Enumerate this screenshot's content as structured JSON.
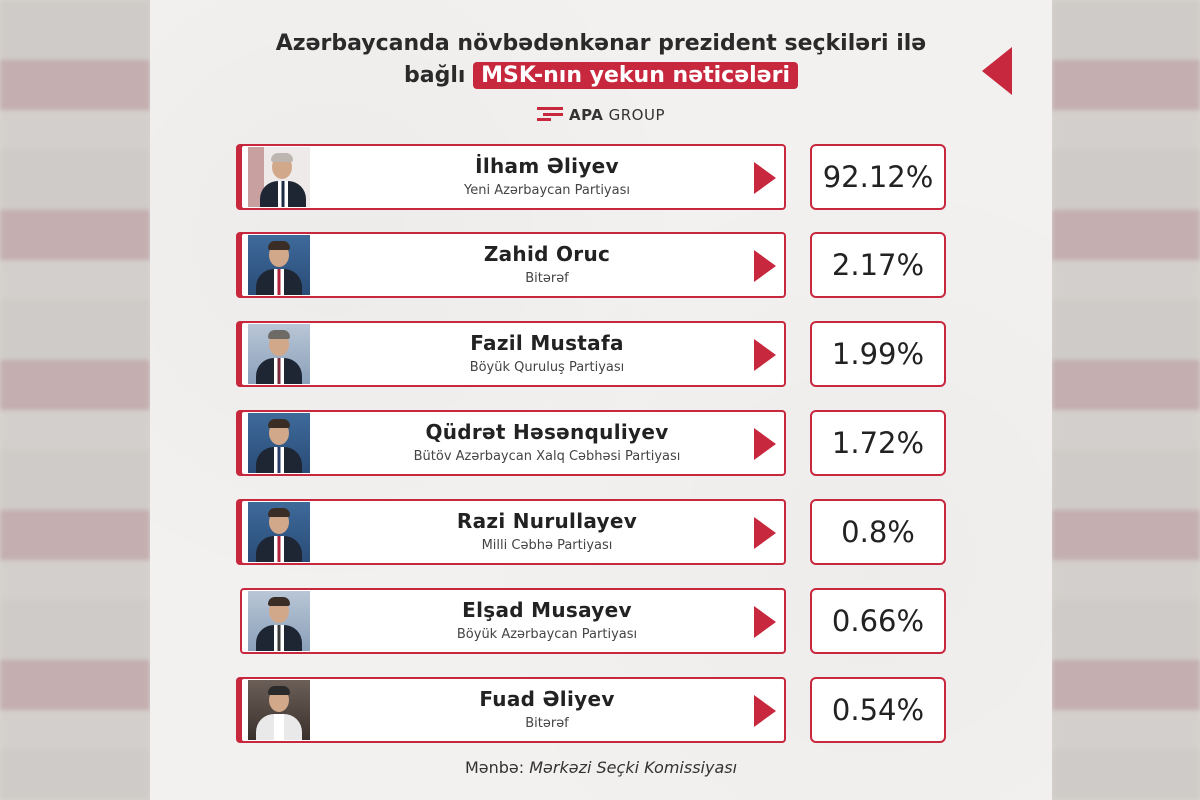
{
  "header": {
    "title_line1": "Azərbaycanda növbədənkənar prezident seçkiləri ilə",
    "title_line2_plain": "bağlı",
    "title_line2_highlight": "MSK-nın yekun nəticələri",
    "logo_bold": "APA",
    "logo_rest": "GROUP",
    "accent_color": "#c8283e"
  },
  "candidates": [
    {
      "name": "İlham Əliyev",
      "party": "Yeni Azərbaycan Partiyası",
      "percent": "92.12%"
    },
    {
      "name": "Zahid Oruc",
      "party": "Bitərəf",
      "percent": "2.17%"
    },
    {
      "name": "Fazil Mustafa",
      "party": "Böyük Quruluş Partiyası",
      "percent": "1.99%"
    },
    {
      "name": "Qüdrət Həsənquliyev",
      "party": "Bütöv Azərbaycan Xalq Cəbhəsi Partiyası",
      "percent": "1.72%"
    },
    {
      "name": "Razi Nurullayev",
      "party": "Milli Cəbhə Partiyası",
      "percent": "0.8%"
    },
    {
      "name": "Elşad Musayev",
      "party": "Böyük Azərbaycan Partiyası",
      "percent": "0.66%"
    },
    {
      "name": "Fuad Əliyev",
      "party": "Bitərəf",
      "percent": "0.54%"
    }
  ],
  "footer": {
    "source_label": "Mənbə:",
    "source_value": "Mərkəzi Seçki Komissiyası"
  }
}
